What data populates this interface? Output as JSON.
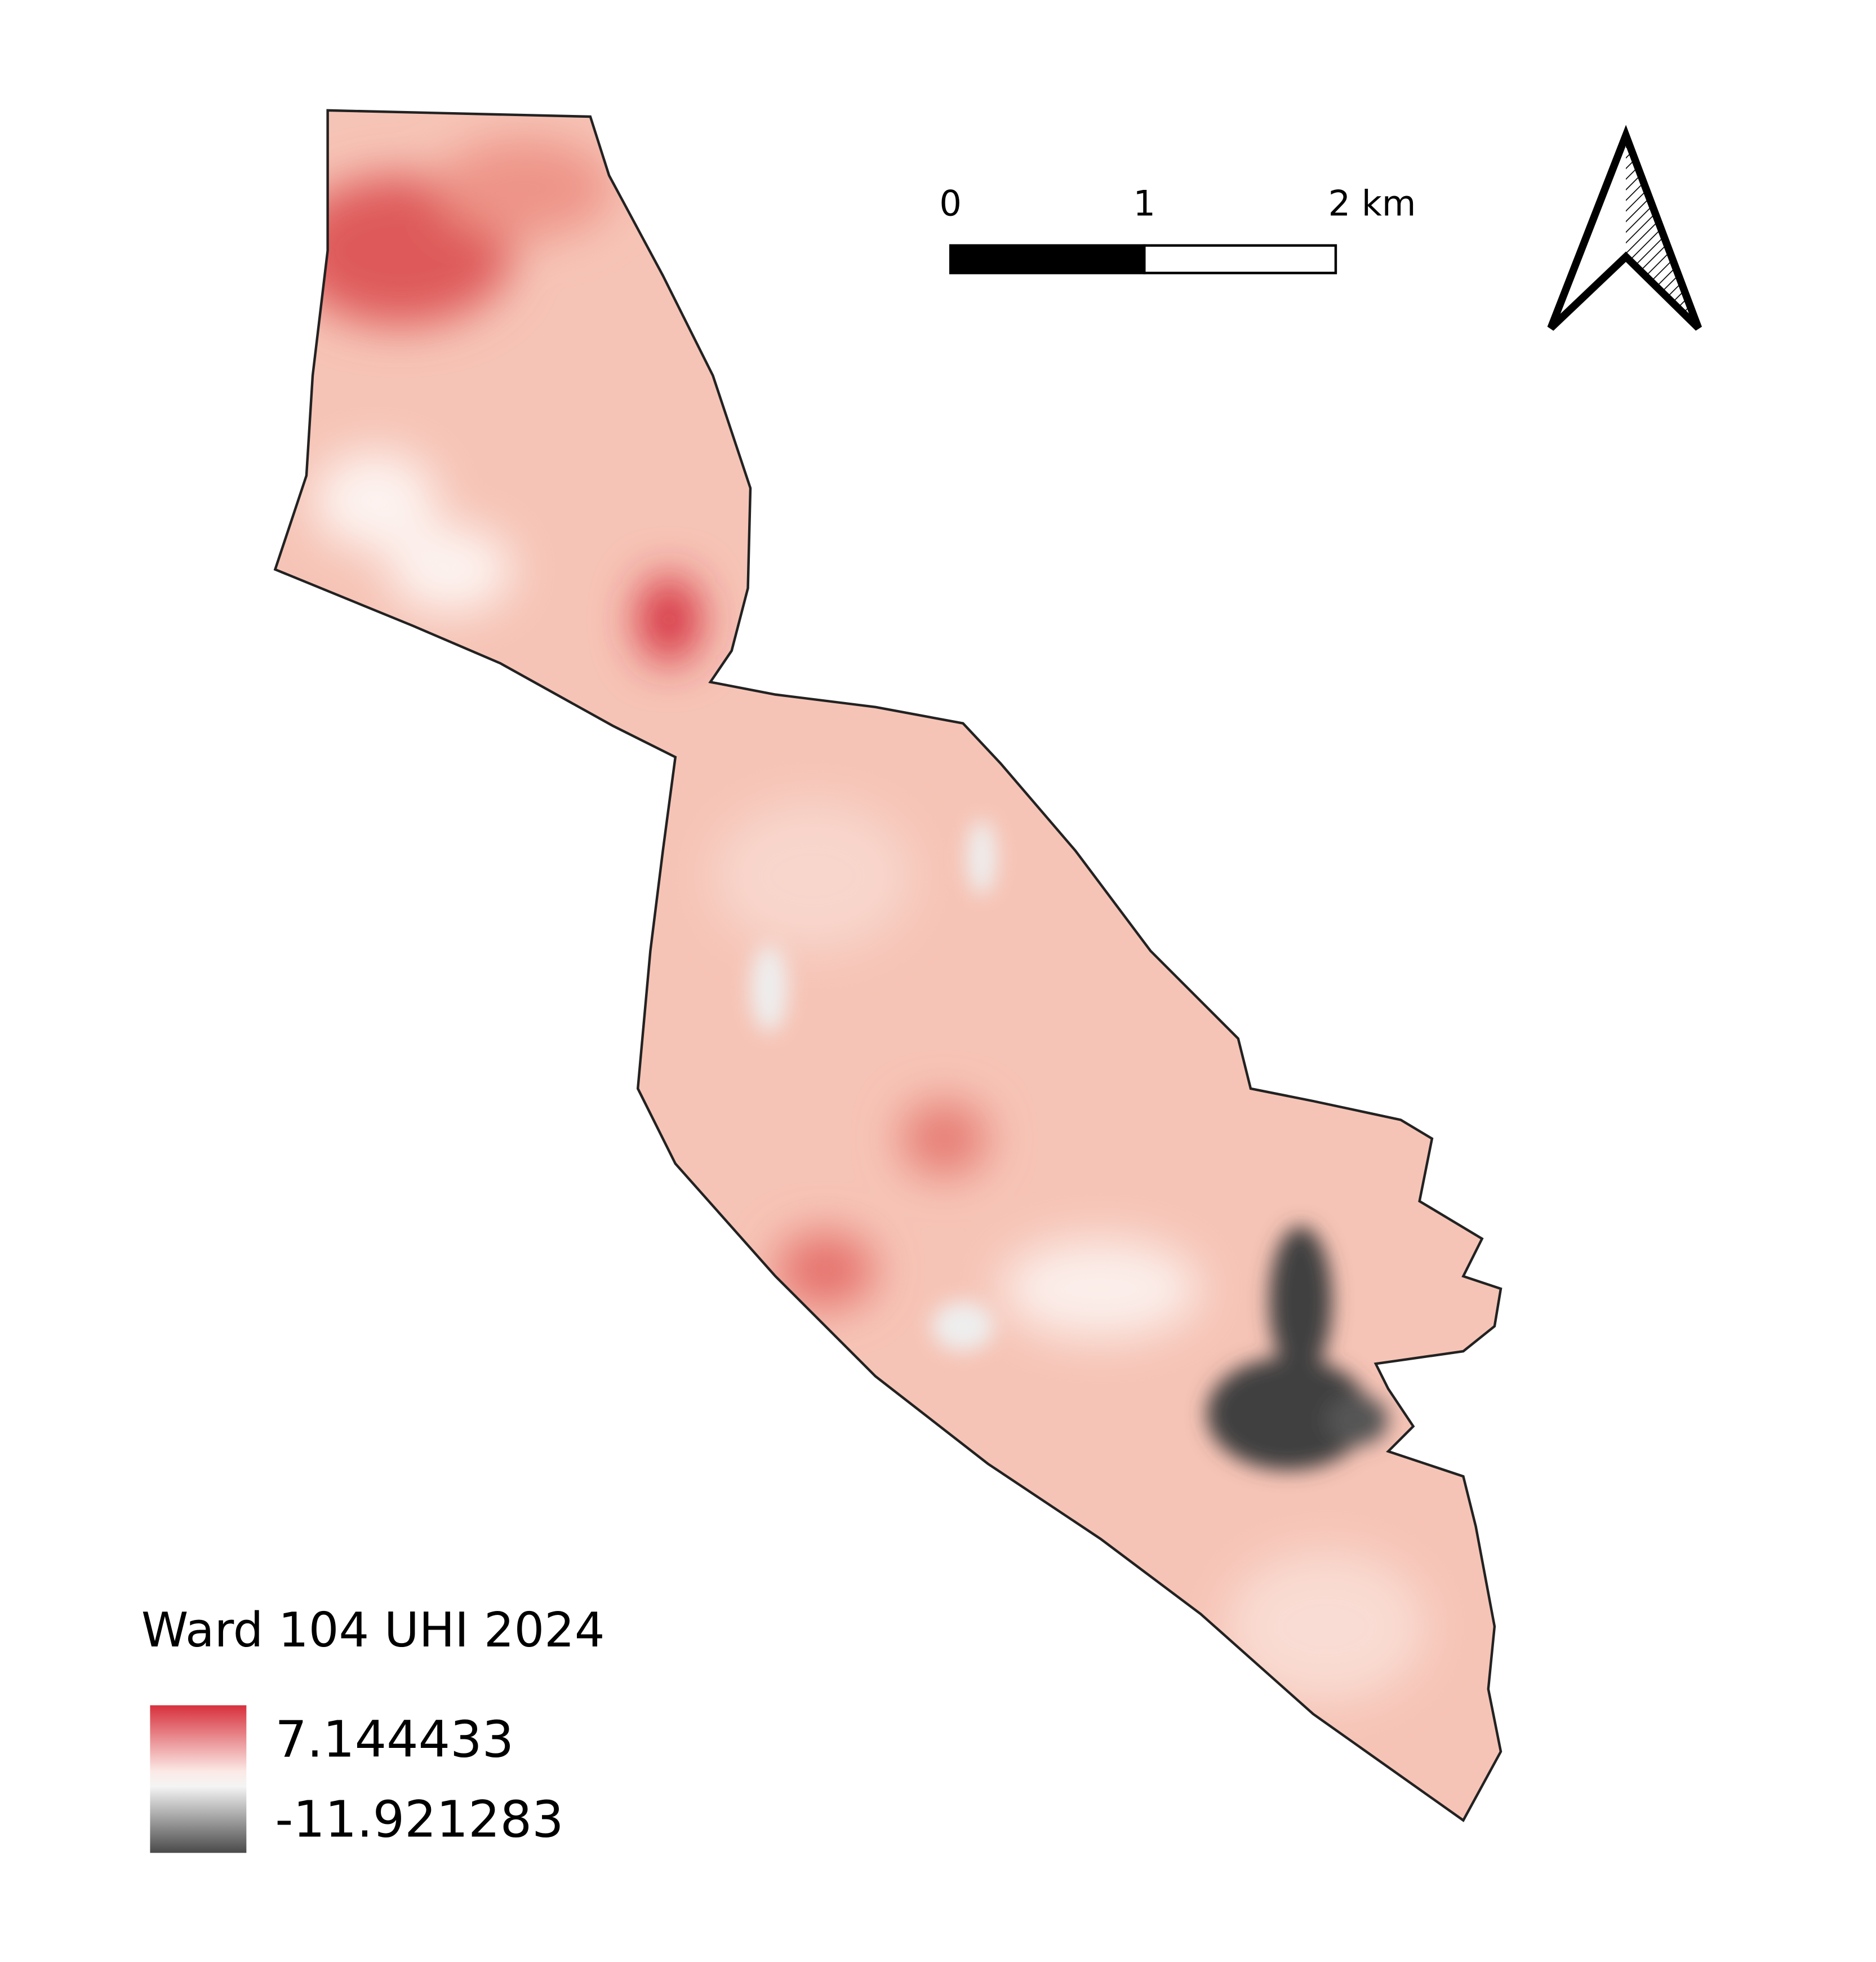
{
  "legend": {
    "title": "Ward 104 UHI 2024",
    "max": "7.144433",
    "min": "-11.921283"
  },
  "scale_bar": {
    "labels": [
      "0",
      "1",
      "2 km"
    ]
  }
}
